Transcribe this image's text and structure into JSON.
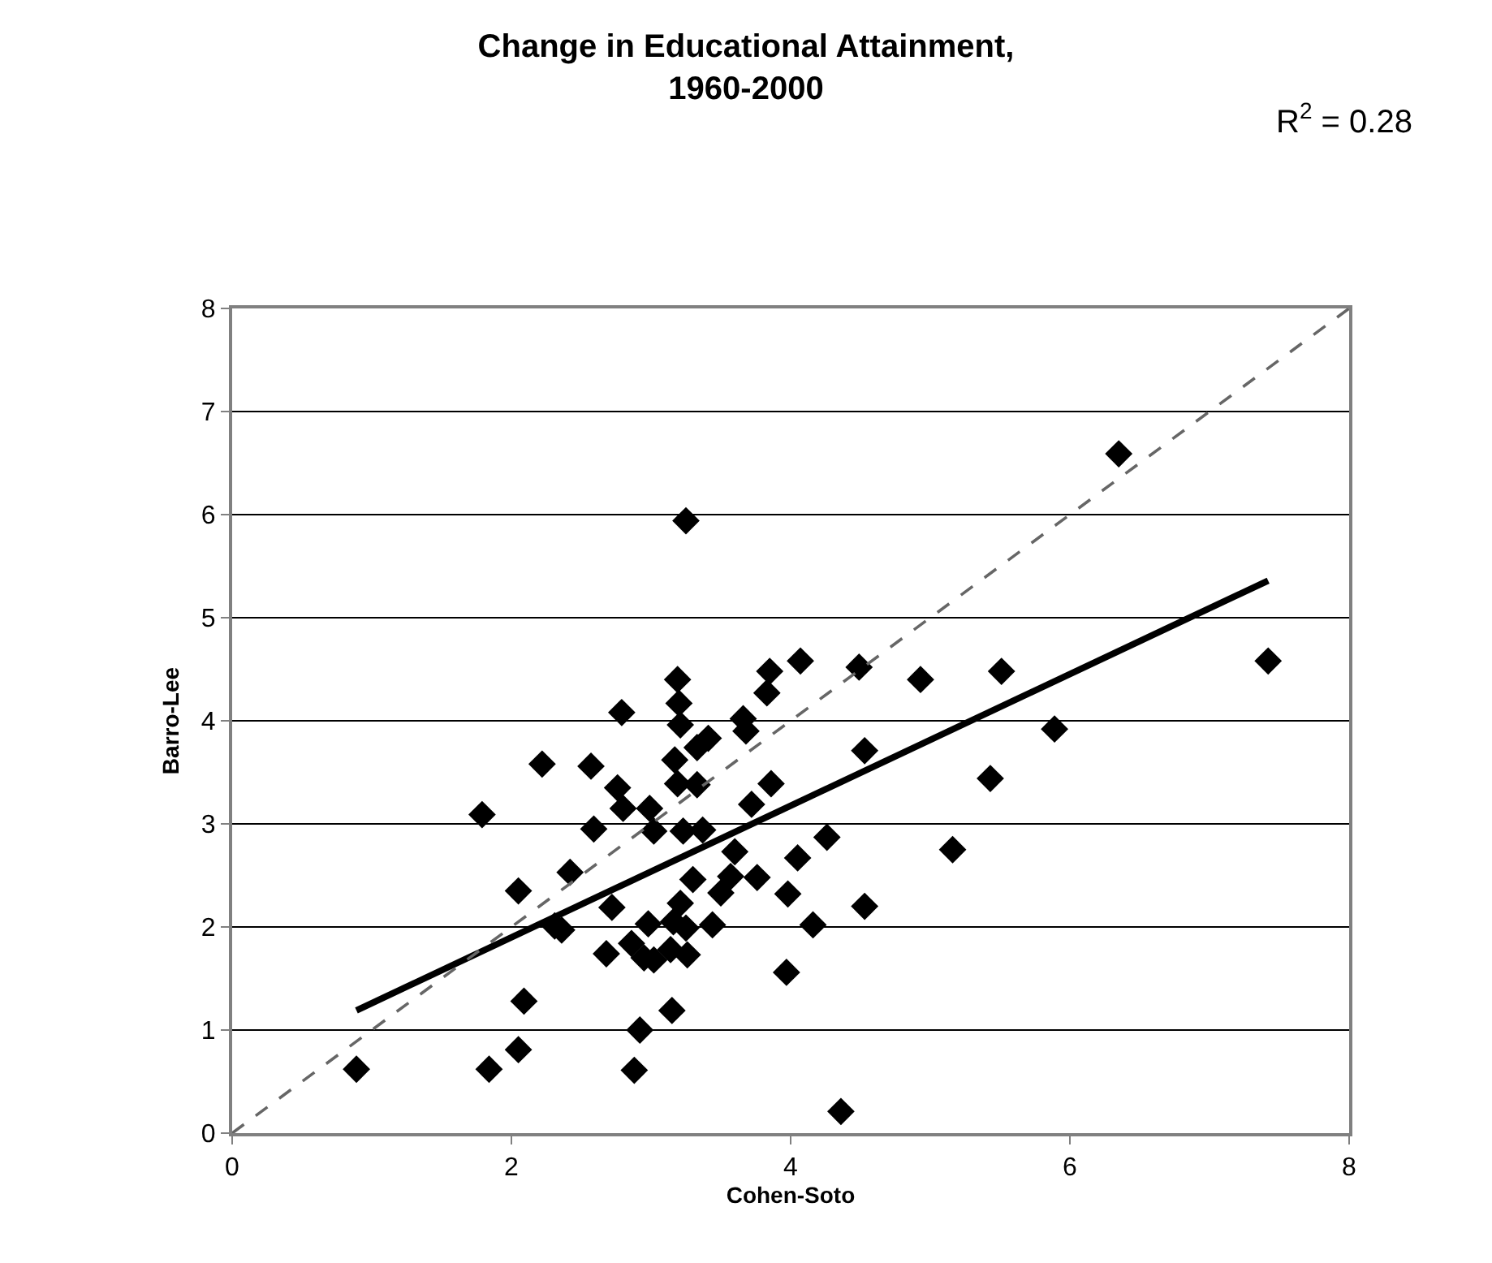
{
  "chart_data": {
    "type": "scatter",
    "title": "Change in Educational Attainment,\n1960-2000",
    "xlabel": "Cohen-Soto",
    "ylabel": "Barro-Lee",
    "annotations": [
      "R$^{2}$ = 0.28"
    ],
    "xlim": [
      0,
      8
    ],
    "xticks": [
      0,
      2,
      4,
      6,
      8
    ],
    "ylim": [
      0,
      8
    ],
    "yticks": [
      0,
      1,
      2,
      3,
      4,
      5,
      6,
      7,
      8
    ],
    "grid": "y",
    "series": [
      {
        "marker": "diamond",
        "color": "#000000",
        "x": [
          0.89,
          1.79,
          1.84,
          2.05,
          2.05,
          2.09,
          2.22,
          2.31,
          2.36,
          2.42,
          2.57,
          2.59,
          2.68,
          2.72,
          2.76,
          2.79,
          2.8,
          2.86,
          2.88,
          2.92,
          2.95,
          2.98,
          2.99,
          3.02,
          3.02,
          3.14,
          3.15,
          3.16,
          3.17,
          3.19,
          3.19,
          3.2,
          3.21,
          3.21,
          3.23,
          3.25,
          3.25,
          3.26,
          3.3,
          3.33,
          3.33,
          3.37,
          3.41,
          3.44,
          3.5,
          3.57,
          3.6,
          3.66,
          3.68,
          3.72,
          3.76,
          3.83,
          3.85,
          3.86,
          3.97,
          3.98,
          4.05,
          4.07,
          4.16,
          4.26,
          4.36,
          4.49,
          4.53,
          4.53,
          4.93,
          5.16,
          5.43,
          5.51,
          5.89,
          6.35,
          7.42
        ],
        "values": [
          0.62,
          3.09,
          0.62,
          2.35,
          0.81,
          1.28,
          3.58,
          2.01,
          1.97,
          2.53,
          3.56,
          2.95,
          1.74,
          2.19,
          3.35,
          4.08,
          3.15,
          1.84,
          0.61,
          1.0,
          1.7,
          2.03,
          3.15,
          2.93,
          1.68,
          1.78,
          1.19,
          2.05,
          3.62,
          4.4,
          3.39,
          4.17,
          3.96,
          2.23,
          2.93,
          1.99,
          5.94,
          1.73,
          2.46,
          3.74,
          3.38,
          2.94,
          3.83,
          2.02,
          2.33,
          2.49,
          2.73,
          4.02,
          3.9,
          3.19,
          2.48,
          4.27,
          4.48,
          3.39,
          1.56,
          2.32,
          2.67,
          4.58,
          2.02,
          2.87,
          0.21,
          4.52,
          3.71,
          2.2,
          4.4,
          2.75,
          3.44,
          4.48,
          3.92,
          6.59,
          4.58
        ]
      },
      {
        "type": "line",
        "color": "#000000",
        "marker": "none",
        "line_style": "solid",
        "x": [
          0.89,
          7.42
        ],
        "values": [
          1.19,
          5.36
        ]
      },
      {
        "type": "line",
        "color": "#666666",
        "marker": "none",
        "line_style": "dashed",
        "x": [
          0,
          8
        ],
        "values": [
          0,
          8
        ]
      }
    ]
  }
}
